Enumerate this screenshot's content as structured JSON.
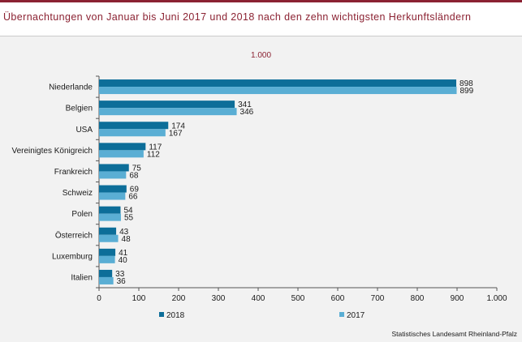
{
  "title": "Übernachtungen von Januar bis Juni 2017 und 2018 nach den zehn wichtigsten Herkunftsländern",
  "unit_note": "1.000",
  "source": "Statistisches Landesamt Rheinland-Pfalz",
  "colors": {
    "accent": "#8b2232",
    "series_2018": "#0d6e99",
    "series_2017": "#5aaed4"
  },
  "chart_data": {
    "type": "bar",
    "orientation": "horizontal",
    "title": "Übernachtungen von Januar bis Juni 2017 und 2018 nach den zehn wichtigsten Herkunftsländern",
    "xlabel": "1.000",
    "ylabel": "",
    "categories": [
      "Niederlande",
      "Belgien",
      "USA",
      "Vereinigtes Königreich",
      "Frankreich",
      "Schweiz",
      "Polen",
      "Österreich",
      "Luxemburg",
      "Italien"
    ],
    "series": [
      {
        "name": "2018",
        "color": "#0d6e99",
        "values": [
          898,
          341,
          174,
          117,
          75,
          69,
          54,
          43,
          41,
          33
        ]
      },
      {
        "name": "2017",
        "color": "#5aaed4",
        "values": [
          899,
          346,
          167,
          112,
          68,
          66,
          55,
          48,
          40,
          36
        ]
      }
    ],
    "xlim": [
      0,
      1000
    ],
    "xticks": [
      0,
      100,
      200,
      300,
      400,
      500,
      600,
      700,
      800,
      900,
      1000
    ],
    "xtick_labels": [
      "0",
      "100",
      "200",
      "300",
      "400",
      "500",
      "600",
      "700",
      "800",
      "900",
      "1.000"
    ],
    "grid": false,
    "legend": "bottom"
  }
}
